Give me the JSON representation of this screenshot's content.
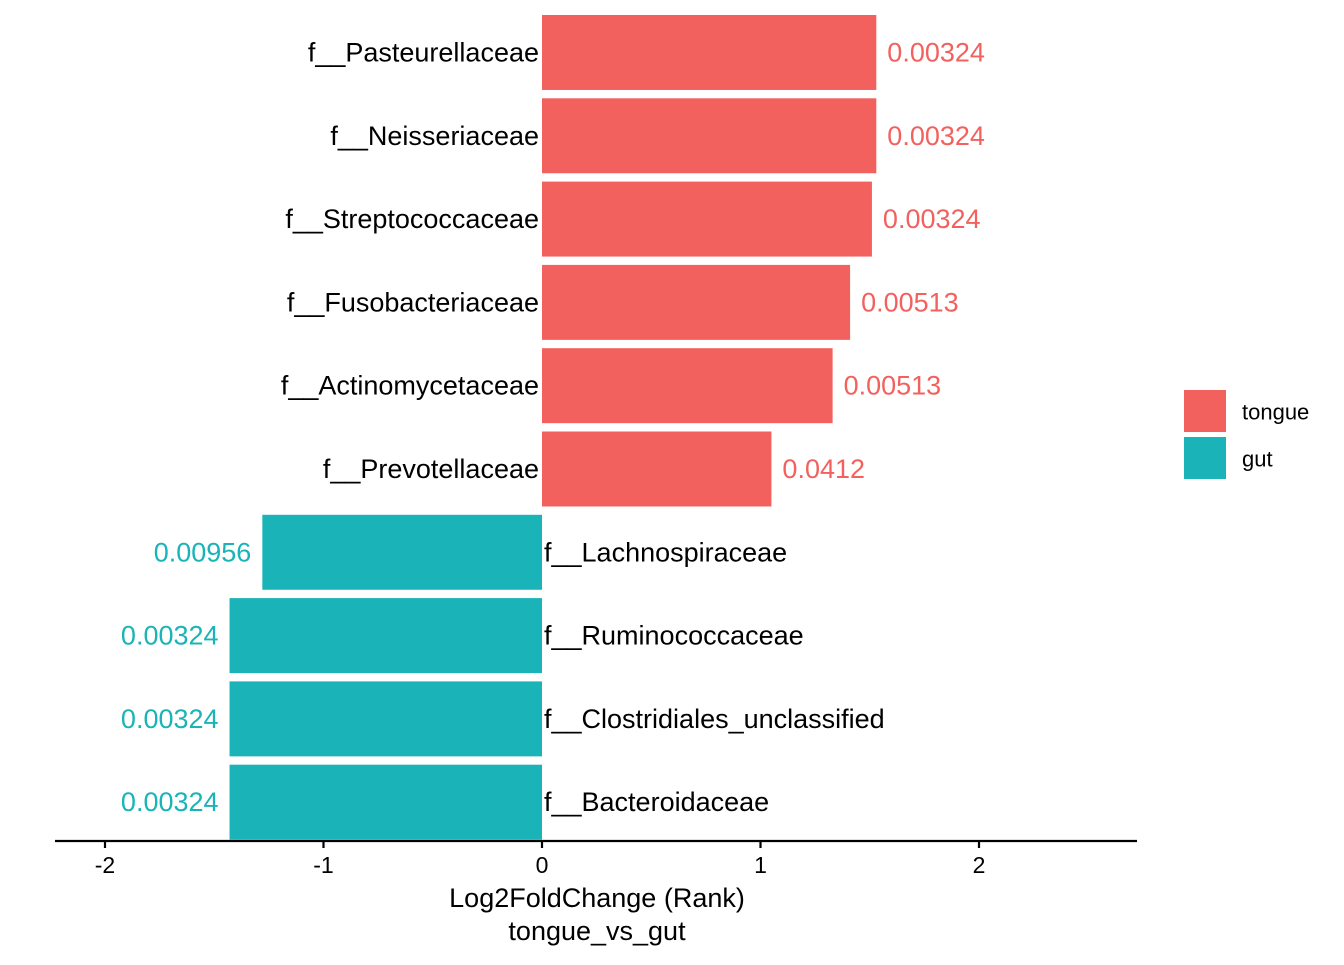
{
  "chart_data": {
    "type": "bar",
    "orientation": "horizontal",
    "xlabel": "Log2FoldChange (Rank)",
    "xlabel2": "tongue_vs_gut",
    "xlim": [
      -2.2,
      2.7
    ],
    "xticks": [
      -2,
      -1,
      0,
      1,
      2
    ],
    "xtick_labels": [
      "-2",
      "-1",
      "0",
      "1",
      "2"
    ],
    "grid": false,
    "legend_position": "right",
    "legend": [
      {
        "name": "tongue",
        "color": "#F3615E"
      },
      {
        "name": "gut",
        "color": "#1AB4B8"
      }
    ],
    "categories": [
      "f__Pasteurellaceae",
      "f__Neisseriaceae",
      "f__Streptococcaceae",
      "f__Fusobacteriaceae",
      "f__Actinomycetaceae",
      "f__Prevotellaceae",
      "f__Lachnospiraceae",
      "f__Ruminococcaceae",
      "f__Clostridiales_unclassified",
      "f__Bacteroidaceae"
    ],
    "values": [
      1.53,
      1.53,
      1.51,
      1.41,
      1.33,
      1.05,
      -1.28,
      -1.43,
      -1.43,
      -1.43
    ],
    "groups": [
      "tongue",
      "tongue",
      "tongue",
      "tongue",
      "tongue",
      "tongue",
      "gut",
      "gut",
      "gut",
      "gut"
    ],
    "labels": [
      "0.00324",
      "0.00324",
      "0.00324",
      "0.00513",
      "0.00513",
      "0.0412",
      "0.00956",
      "0.00324",
      "0.00324",
      "0.00324"
    ]
  }
}
